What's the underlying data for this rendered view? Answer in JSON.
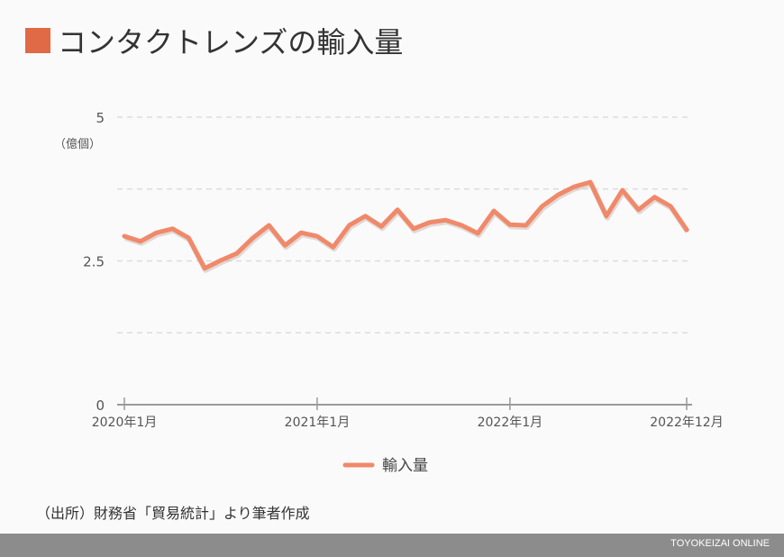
{
  "title": "コンタクトレンズの輸入量",
  "source": "（出所）財務省「貿易統計」より筆者作成",
  "footer": "TOYOKEIZAI ONLINE",
  "chart_data": {
    "type": "line",
    "title": "コンタクトレンズの輸入量",
    "ylabel": "（億個）",
    "ylim": [
      0,
      5
    ],
    "yticks": [
      {
        "v": 0,
        "label": "0"
      },
      {
        "v": 2.5,
        "label": "2.5"
      },
      {
        "v": 5,
        "label": "5"
      }
    ],
    "grid_values": [
      1.25,
      2.5,
      3.75,
      5
    ],
    "xticks": [
      {
        "i": 0,
        "label": "2020年1月"
      },
      {
        "i": 12,
        "label": "2021年1月"
      },
      {
        "i": 24,
        "label": "2022年1月"
      },
      {
        "i": 35,
        "label": "2022年12月"
      }
    ],
    "legend": "bottom",
    "color": "#f0896a",
    "series": [
      {
        "name": "輸入量",
        "values": [
          2.93,
          2.84,
          2.99,
          3.06,
          2.9,
          2.37,
          2.51,
          2.63,
          2.9,
          3.12,
          2.77,
          2.99,
          2.93,
          2.74,
          3.12,
          3.28,
          3.1,
          3.39,
          3.06,
          3.17,
          3.21,
          3.12,
          2.98,
          3.37,
          3.13,
          3.12,
          3.45,
          3.65,
          3.79,
          3.87,
          3.28,
          3.73,
          3.39,
          3.61,
          3.45,
          3.04
        ]
      }
    ]
  }
}
